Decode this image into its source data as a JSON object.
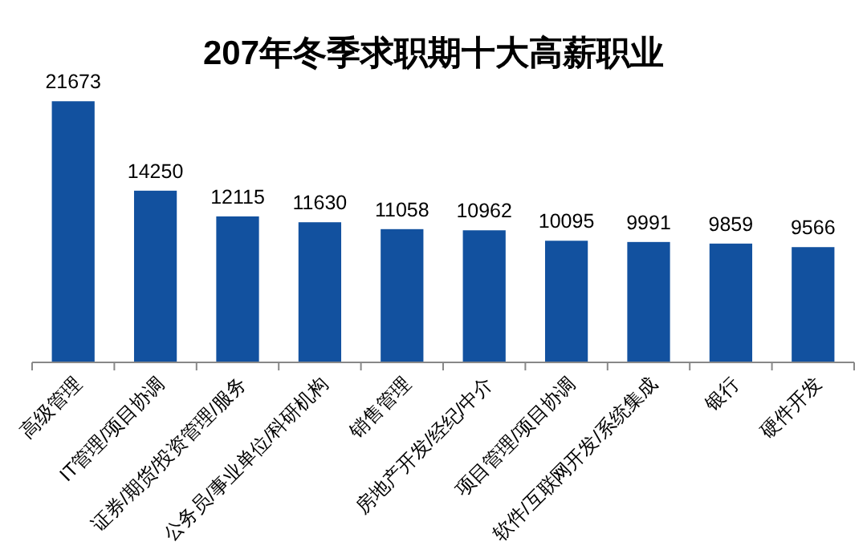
{
  "chart_data": {
    "type": "bar",
    "title": "207年冬季求职期十大高薪职业",
    "categories": [
      "高级管理",
      "IT管理/项目协调",
      "证券/期货/投资管理/服务",
      "公务员/事业单位/科研机构",
      "销售管理",
      "房地产开发/经纪/中介",
      "项目管理/项目协调",
      "软件/互联网开发/系统集成",
      "银行",
      "硬件开发"
    ],
    "values": [
      21673,
      14250,
      12115,
      11630,
      11058,
      10962,
      10095,
      9991,
      9859,
      9566
    ],
    "color": "#12519f",
    "data_labels": true
  }
}
